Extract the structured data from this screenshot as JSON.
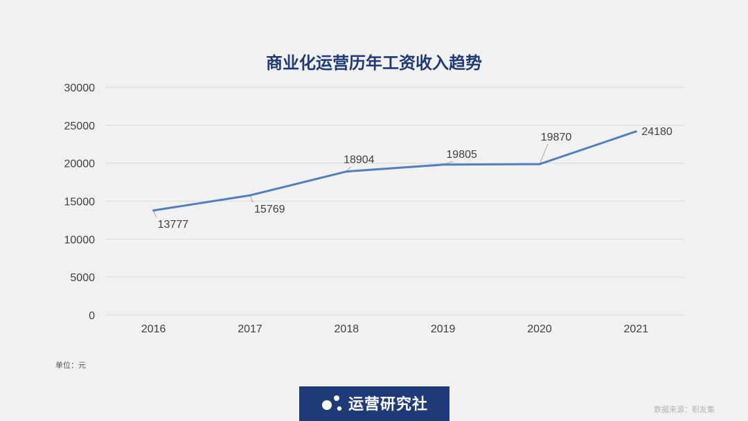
{
  "chart_data": {
    "type": "line",
    "title": "商业化运营历年工资收入趋势",
    "categories": [
      "2016",
      "2017",
      "2018",
      "2019",
      "2020",
      "2021"
    ],
    "series": [
      {
        "values": [
          13777,
          15769,
          18904,
          19805,
          19870,
          24180
        ]
      }
    ],
    "y_ticks": [
      0,
      5000,
      10000,
      15000,
      20000,
      25000,
      30000
    ],
    "ylim": [
      0,
      30000
    ],
    "xlabel": "",
    "ylabel": "",
    "grid": true,
    "legend": "none",
    "data_labels": [
      "13777",
      "15769",
      "18904",
      "19805",
      "19870",
      "24180"
    ]
  },
  "notes": {
    "unit": "单位：元",
    "source": "数据来源：职友集"
  },
  "brand": {
    "name": "运营研究社"
  },
  "colors": {
    "background": "#f1f1f1",
    "line": "#4f81bd",
    "title": "#1f3a78",
    "gridline": "#d9d9d9",
    "brand_bg": "#1f3a78"
  }
}
